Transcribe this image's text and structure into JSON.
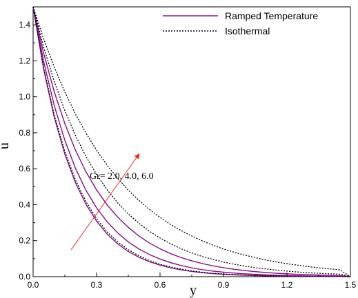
{
  "chart_data": {
    "type": "line",
    "xlabel": "y",
    "ylabel": "u",
    "xlim": [
      0.0,
      1.5
    ],
    "ylim": [
      0.0,
      1.5
    ],
    "xticks": [
      0.0,
      0.3,
      0.6,
      0.9,
      1.2,
      1.5
    ],
    "xtick_labels": [
      "0.0",
      "0.3",
      "0.6",
      "0.9",
      "1.2",
      "1.5"
    ],
    "yticks": [
      0.0,
      0.2,
      0.4,
      0.6,
      0.8,
      1.0,
      1.2,
      1.4
    ],
    "ytick_labels": [
      "0.0",
      "0.2",
      "0.4",
      "0.6",
      "0.8",
      "1.0",
      "1.2",
      "1.4"
    ],
    "grid": false,
    "legend_position": "top-right",
    "legend": [
      {
        "label": "Ramped Temperature",
        "style": "solid",
        "color": "#8B1A8B"
      },
      {
        "label": "Isothermal",
        "style": "dotted",
        "color": "#000000"
      }
    ],
    "annotation": {
      "text": "Gr= 2.0, 4.0, 6.0",
      "arrow_from": [
        0.18,
        0.15
      ],
      "arrow_to": [
        0.5,
        0.68
      ],
      "arrow_color": "#E8302A"
    },
    "x": [
      0.0,
      0.05,
      0.1,
      0.15,
      0.2,
      0.25,
      0.3,
      0.35,
      0.4,
      0.45,
      0.5,
      0.55,
      0.6,
      0.65,
      0.7,
      0.75,
      0.8,
      0.85,
      0.9,
      0.95,
      1.0,
      1.05,
      1.1,
      1.15,
      1.2,
      1.25,
      1.3,
      1.35,
      1.4,
      1.45,
      1.5
    ],
    "series": [
      {
        "style": "solid",
        "color": "#8B1A8B",
        "values": [
          1.5,
          1.153,
          0.886,
          0.681,
          0.523,
          0.402,
          0.309,
          0.237,
          0.182,
          0.14,
          0.108,
          0.083,
          0.064,
          0.049,
          0.038,
          0.029,
          0.022,
          0.017,
          0.013,
          0.01,
          0.008,
          0.006,
          0.005,
          0.004,
          0.003,
          0.002,
          0.002,
          0.001,
          0.001,
          0.001,
          0.0
        ]
      },
      {
        "style": "solid",
        "color": "#8B1A8B",
        "values": [
          1.5,
          1.195,
          0.951,
          0.758,
          0.603,
          0.48,
          0.383,
          0.305,
          0.243,
          0.193,
          0.154,
          0.123,
          0.098,
          0.078,
          0.062,
          0.049,
          0.039,
          0.031,
          0.025,
          0.02,
          0.016,
          0.013,
          0.01,
          0.008,
          0.006,
          0.005,
          0.004,
          0.003,
          0.002,
          0.002,
          0.0
        ]
      },
      {
        "style": "solid",
        "color": "#8B1A8B",
        "values": [
          1.5,
          1.242,
          1.028,
          0.851,
          0.704,
          0.583,
          0.482,
          0.399,
          0.331,
          0.274,
          0.226,
          0.187,
          0.155,
          0.128,
          0.106,
          0.088,
          0.073,
          0.06,
          0.05,
          0.041,
          0.034,
          0.028,
          0.023,
          0.019,
          0.016,
          0.013,
          0.011,
          0.009,
          0.007,
          0.006,
          0.0
        ]
      },
      {
        "style": "dotted",
        "color": "#000000",
        "values": [
          1.5,
          1.161,
          0.899,
          0.696,
          0.539,
          0.417,
          0.323,
          0.25,
          0.193,
          0.15,
          0.116,
          0.09,
          0.069,
          0.054,
          0.042,
          0.032,
          0.025,
          0.019,
          0.015,
          0.012,
          0.009,
          0.007,
          0.005,
          0.004,
          0.003,
          0.003,
          0.002,
          0.002,
          0.001,
          0.001,
          0.0
        ]
      },
      {
        "style": "dotted",
        "color": "#000000",
        "values": [
          1.5,
          1.276,
          1.085,
          0.923,
          0.785,
          0.668,
          0.568,
          0.483,
          0.41,
          0.349,
          0.297,
          0.252,
          0.215,
          0.183,
          0.155,
          0.132,
          0.112,
          0.096,
          0.081,
          0.069,
          0.059,
          0.05,
          0.043,
          0.036,
          0.031,
          0.026,
          0.022,
          0.019,
          0.016,
          0.014,
          0.0
        ]
      },
      {
        "style": "dotted",
        "color": "#000000",
        "values": [
          1.5,
          1.322,
          1.165,
          1.027,
          0.905,
          0.798,
          0.703,
          0.62,
          0.546,
          0.481,
          0.424,
          0.374,
          0.33,
          0.29,
          0.256,
          0.226,
          0.199,
          0.175,
          0.154,
          0.136,
          0.12,
          0.106,
          0.093,
          0.082,
          0.072,
          0.064,
          0.056,
          0.049,
          0.044,
          0.038,
          0.0
        ]
      }
    ]
  }
}
